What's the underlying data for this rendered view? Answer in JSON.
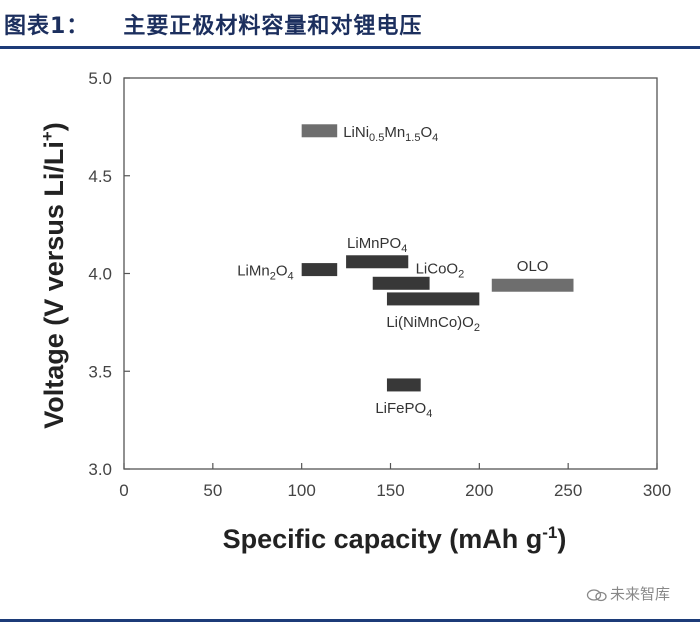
{
  "header": {
    "figure_number": "图表1：",
    "title": "主要正极材料容量和对锂电压"
  },
  "watermark": {
    "text": "未来智库",
    "icon": "wechat-icon"
  },
  "colors": {
    "rule": "#1c3b78",
    "title": "#1c2f5e",
    "bar_dark": "#383838",
    "bar_light": "#6e6e6e"
  },
  "chart_data": {
    "type": "bar",
    "orientation": "floating-horizontal",
    "xlabel": "Specific capacity (mAh g",
    "xlabel_sup": "-1",
    "xlabel_end": ")",
    "ylabel": "Voltage (V versus Li/Li",
    "ylabel_sup": "+",
    "ylabel_end": ")",
    "xlim": [
      0,
      300
    ],
    "ylim": [
      3.0,
      5.0
    ],
    "xticks": [
      0,
      50,
      100,
      150,
      200,
      250,
      300
    ],
    "xtick_labels": [
      "0",
      "50",
      "100",
      "150",
      "200",
      "250",
      "300"
    ],
    "yticks": [
      3.0,
      3.5,
      4.0,
      4.5,
      5.0
    ],
    "ytick_labels": [
      "3.0",
      "3.5",
      "4.0",
      "4.5",
      "5.0"
    ],
    "grid": false,
    "materials": [
      {
        "name": "LiNi0.5Mn1.5O4",
        "label_parts": [
          [
            "LiNi",
            ""
          ],
          [
            "0.5",
            "sub"
          ],
          [
            "Mn",
            ""
          ],
          [
            "1.5",
            "sub"
          ],
          [
            "O",
            ""
          ],
          [
            "4",
            "sub"
          ]
        ],
        "x_start": 100,
        "x_end": 120,
        "voltage": 4.73,
        "label_pos": "right",
        "color": "#6e6e6e"
      },
      {
        "name": "LiMnPO4",
        "label_parts": [
          [
            "LiMnPO",
            ""
          ],
          [
            "4",
            "sub"
          ]
        ],
        "x_start": 125,
        "x_end": 160,
        "voltage": 4.06,
        "label_pos": "above",
        "color": "#383838"
      },
      {
        "name": "LiMn2O4",
        "label_parts": [
          [
            "LiMn",
            ""
          ],
          [
            "2",
            "sub"
          ],
          [
            "O",
            ""
          ],
          [
            "4",
            "sub"
          ]
        ],
        "x_start": 100,
        "x_end": 120,
        "voltage": 4.02,
        "label_pos": "left",
        "color": "#383838"
      },
      {
        "name": "LiCoO2",
        "label_parts": [
          [
            "LiCoO",
            ""
          ],
          [
            "2",
            "sub"
          ]
        ],
        "x_start": 140,
        "x_end": 172,
        "voltage": 3.95,
        "label_pos": "above-right",
        "color": "#383838"
      },
      {
        "name": "OLO",
        "label_parts": [
          [
            "OLO",
            ""
          ]
        ],
        "x_start": 207,
        "x_end": 253,
        "voltage": 3.94,
        "label_pos": "above",
        "color": "#6e6e6e"
      },
      {
        "name": "Li(NiMnCo)O2",
        "label_parts": [
          [
            "Li(NiMnCo)O",
            ""
          ],
          [
            "2",
            "sub"
          ]
        ],
        "x_start": 148,
        "x_end": 200,
        "voltage": 3.87,
        "label_pos": "below",
        "color": "#383838"
      },
      {
        "name": "LiFePO4",
        "label_parts": [
          [
            "LiFePO",
            ""
          ],
          [
            "4",
            "sub"
          ]
        ],
        "x_start": 148,
        "x_end": 167,
        "voltage": 3.43,
        "label_pos": "below",
        "color": "#383838"
      }
    ]
  }
}
